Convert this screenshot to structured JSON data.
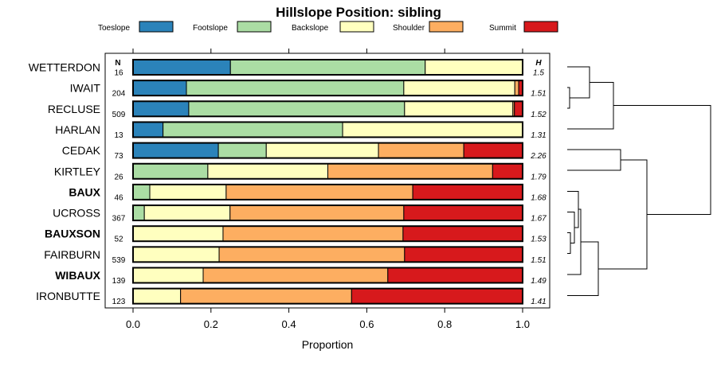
{
  "chart_data": {
    "type": "bar",
    "orientation": "horizontal-stacked",
    "title": "Hillslope Position: sibling",
    "xlabel": "Proportion",
    "xlim": [
      0,
      1
    ],
    "xticks": [
      "0.0",
      "0.2",
      "0.4",
      "0.6",
      "0.8",
      "1.0"
    ],
    "n_header": "N",
    "h_header": "H",
    "legend_position": "top",
    "series": [
      {
        "name": "Toeslope",
        "color": "#2b83ba"
      },
      {
        "name": "Footslope",
        "color": "#abdda4"
      },
      {
        "name": "Backslope",
        "color": "#ffffbf"
      },
      {
        "name": "Shoulder",
        "color": "#fdae61"
      },
      {
        "name": "Summit",
        "color": "#d7191c"
      }
    ],
    "categories": [
      {
        "label": "WETTERDON",
        "bold": false,
        "n": "16",
        "h": "1.5",
        "values": [
          0.25,
          0.5,
          0.25,
          0,
          0
        ]
      },
      {
        "label": "IWAIT",
        "bold": false,
        "n": "204",
        "h": "1.51",
        "values": [
          0.137,
          0.558,
          0.285,
          0.01,
          0.01
        ]
      },
      {
        "label": "RECLUSE",
        "bold": false,
        "n": "509",
        "h": "1.52",
        "values": [
          0.143,
          0.554,
          0.278,
          0.004,
          0.021
        ]
      },
      {
        "label": "HARLAN",
        "bold": false,
        "n": "13",
        "h": "1.31",
        "values": [
          0.077,
          0.461,
          0.462,
          0,
          0
        ]
      },
      {
        "label": "CEDAK",
        "bold": false,
        "n": "73",
        "h": "2.26",
        "values": [
          0.219,
          0.123,
          0.288,
          0.219,
          0.151
        ]
      },
      {
        "label": "KIRTLEY",
        "bold": false,
        "n": "26",
        "h": "1.79",
        "values": [
          0,
          0.192,
          0.308,
          0.423,
          0.077
        ]
      },
      {
        "label": "BAUX",
        "bold": true,
        "n": "46",
        "h": "1.68",
        "values": [
          0,
          0.043,
          0.196,
          0.479,
          0.282
        ]
      },
      {
        "label": "UCROSS",
        "bold": false,
        "n": "367",
        "h": "1.67",
        "values": [
          0,
          0.029,
          0.22,
          0.446,
          0.305
        ]
      },
      {
        "label": "BAUXSON",
        "bold": true,
        "n": "52",
        "h": "1.53",
        "values": [
          0,
          0,
          0.231,
          0.462,
          0.307
        ]
      },
      {
        "label": "FAIRBURN",
        "bold": false,
        "n": "539",
        "h": "1.51",
        "values": [
          0,
          0,
          0.221,
          0.476,
          0.303
        ]
      },
      {
        "label": "WIBAUX",
        "bold": true,
        "n": "139",
        "h": "1.49",
        "values": [
          0,
          0,
          0.18,
          0.474,
          0.346
        ]
      },
      {
        "label": "IRONBUTTE",
        "bold": false,
        "n": "123",
        "h": "1.41",
        "values": [
          0,
          0,
          0.122,
          0.439,
          0.439
        ]
      }
    ]
  }
}
